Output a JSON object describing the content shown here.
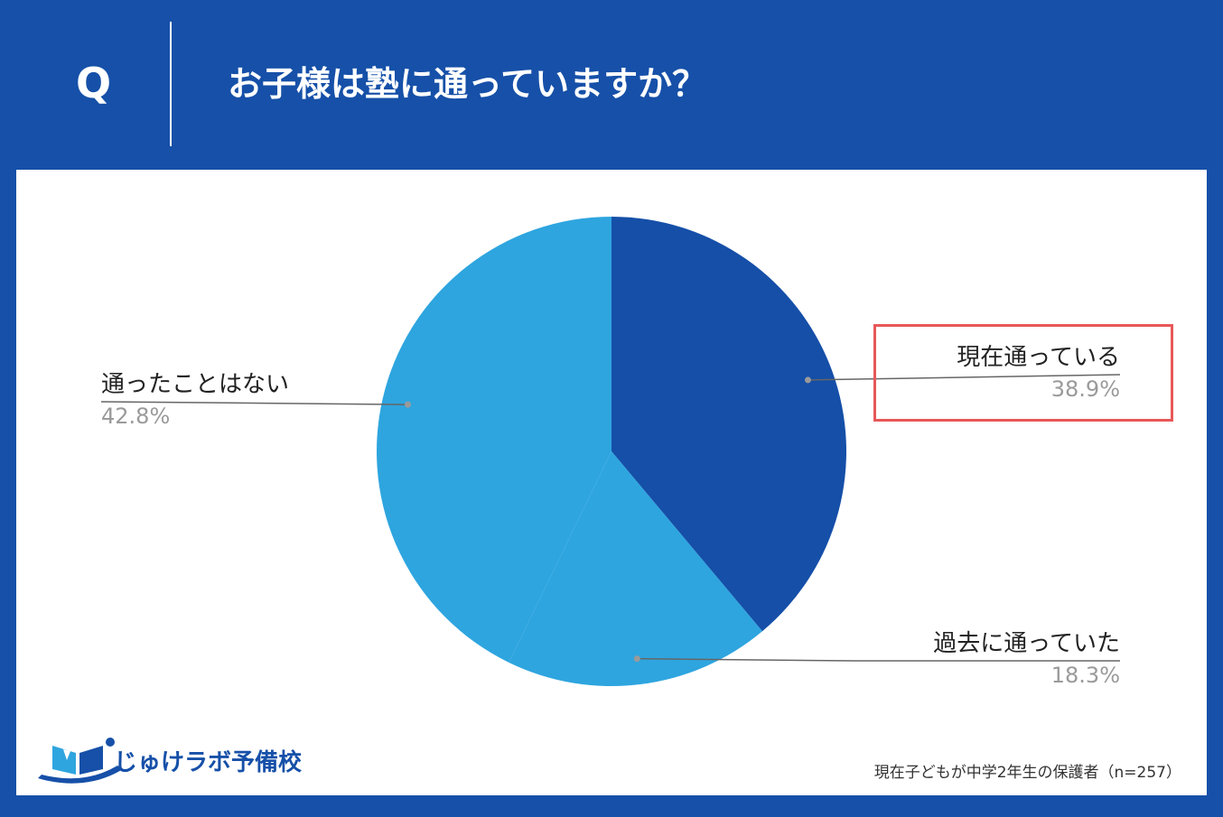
{
  "header": {
    "q_mark": "Q",
    "question": "お子様は塾に通っていますか？"
  },
  "chart_data": {
    "type": "pie",
    "title": "お子様は塾に通っていますか？",
    "categories": [
      "現在通っている",
      "過去に通っていた",
      "通ったことはない"
    ],
    "values": [
      38.9,
      18.3,
      42.8
    ],
    "labels": [
      "38.9%",
      "18.3%",
      "42.8%"
    ],
    "colors": [
      "#154fa8",
      "#2ea5df",
      "#2ea5df"
    ],
    "highlighted": "現在通っている"
  },
  "footer": {
    "logo_text": "じゅけラボ予備校",
    "note": "現在子どもが中学2年生の保護者（n=257）"
  },
  "colors": {
    "background": "#1650a8",
    "panel": "#ffffff",
    "highlight_border": "#e85858",
    "leader_line": "#666666"
  },
  "icons": {
    "logo": "book-logo-icon"
  }
}
